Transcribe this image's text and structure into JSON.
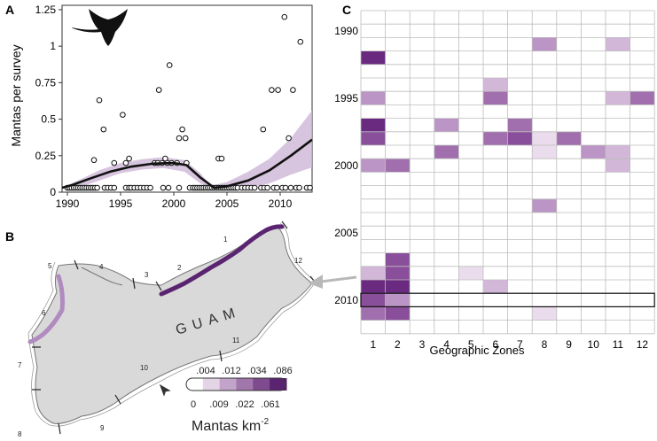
{
  "chart_data": [
    {
      "panel_label": "A",
      "type": "scatter",
      "ylabel": "Mantas per survey",
      "xlim": [
        1989.5,
        2013
      ],
      "ylim": [
        0,
        1.28
      ],
      "xticks": [
        1990,
        1995,
        2000,
        2005,
        2010
      ],
      "yticks": [
        0,
        0.25,
        0.5,
        0.75,
        1,
        1.25
      ],
      "ytick_labels": [
        "0",
        "0.25",
        "0.5",
        "0.75",
        "1",
        "1.25"
      ],
      "points": [
        [
          1990,
          0.03
        ],
        [
          1990.2,
          0.03
        ],
        [
          1990.4,
          0.03
        ],
        [
          1990.6,
          0.03
        ],
        [
          1990.8,
          0.03
        ],
        [
          1991,
          0.03
        ],
        [
          1991.2,
          0.03
        ],
        [
          1991.4,
          0.03
        ],
        [
          1991.6,
          0.03
        ],
        [
          1991.8,
          0.03
        ],
        [
          1992,
          0.03
        ],
        [
          1992.2,
          0.03
        ],
        [
          1992.4,
          0.03
        ],
        [
          1992.6,
          0.03
        ],
        [
          1992.8,
          0.03
        ],
        [
          1993.5,
          0.03
        ],
        [
          1993.8,
          0.03
        ],
        [
          1994.1,
          0.03
        ],
        [
          1994.4,
          0.03
        ],
        [
          1995.5,
          0.03
        ],
        [
          1995.8,
          0.03
        ],
        [
          1996,
          0.03
        ],
        [
          1996.3,
          0.03
        ],
        [
          1996.6,
          0.03
        ],
        [
          1996.9,
          0.03
        ],
        [
          1997.2,
          0.03
        ],
        [
          1997.5,
          0.03
        ],
        [
          1997.8,
          0.03
        ],
        [
          1999,
          0.03
        ],
        [
          1999.5,
          0.03
        ],
        [
          2000.5,
          0.03
        ],
        [
          2001.5,
          0.03
        ],
        [
          2001.8,
          0.03
        ],
        [
          2002,
          0.03
        ],
        [
          2002.2,
          0.03
        ],
        [
          2002.4,
          0.03
        ],
        [
          2002.6,
          0.03
        ],
        [
          2002.8,
          0.03
        ],
        [
          2003,
          0.03
        ],
        [
          2003.2,
          0.03
        ],
        [
          2003.4,
          0.03
        ],
        [
          2003.6,
          0.03
        ],
        [
          2003.8,
          0.03
        ],
        [
          2004,
          0.03
        ],
        [
          2004.2,
          0.03
        ],
        [
          2004.4,
          0.03
        ],
        [
          2004.6,
          0.03
        ],
        [
          2004.8,
          0.03
        ],
        [
          2005,
          0.03
        ],
        [
          2005.2,
          0.03
        ],
        [
          2005.4,
          0.03
        ],
        [
          2005.6,
          0.03
        ],
        [
          2005.8,
          0.03
        ],
        [
          2006,
          0.03
        ],
        [
          2006.4,
          0.03
        ],
        [
          2006.7,
          0.03
        ],
        [
          2007,
          0.03
        ],
        [
          2007.3,
          0.03
        ],
        [
          2007.6,
          0.03
        ],
        [
          2008.2,
          0.03
        ],
        [
          2008.5,
          0.03
        ],
        [
          2008.8,
          0.03
        ],
        [
          2009.4,
          0.03
        ],
        [
          2009.7,
          0.03
        ],
        [
          2010.2,
          0.03
        ],
        [
          2010.5,
          0.03
        ],
        [
          2011,
          0.03
        ],
        [
          2011.5,
          0.03
        ],
        [
          2011.8,
          0.03
        ],
        [
          2012.5,
          0.03
        ],
        [
          2012.8,
          0.03
        ],
        [
          1992.5,
          0.22
        ],
        [
          1993,
          0.63
        ],
        [
          1993.4,
          0.43
        ],
        [
          1994.4,
          0.2
        ],
        [
          1995.2,
          0.53
        ],
        [
          1995.5,
          0.2
        ],
        [
          1995.8,
          0.23
        ],
        [
          1998.2,
          0.2
        ],
        [
          1998.5,
          0.2
        ],
        [
          1998.6,
          0.7
        ],
        [
          1998.9,
          0.2
        ],
        [
          1999.2,
          0.23
        ],
        [
          1999.4,
          0.2
        ],
        [
          1999.6,
          0.87
        ],
        [
          1999.8,
          0.2
        ],
        [
          2000.3,
          0.2
        ],
        [
          2000.5,
          0.37
        ],
        [
          2000.8,
          0.43
        ],
        [
          2001.1,
          0.37
        ],
        [
          2001.2,
          0.2
        ],
        [
          2004.2,
          0.23
        ],
        [
          2004.5,
          0.23
        ],
        [
          2008.4,
          0.43
        ],
        [
          2009.2,
          0.7
        ],
        [
          2009.8,
          0.7
        ],
        [
          2010.4,
          1.2
        ],
        [
          2010.8,
          0.37
        ],
        [
          2011.2,
          0.7
        ],
        [
          2011.9,
          1.03
        ]
      ],
      "trend": [
        [
          1989.5,
          0.03
        ],
        [
          1990.5,
          0.05
        ],
        [
          1992,
          0.09
        ],
        [
          1994,
          0.14
        ],
        [
          1996,
          0.175
        ],
        [
          1998,
          0.195
        ],
        [
          2000,
          0.2
        ],
        [
          2001.2,
          0.185
        ],
        [
          2002.5,
          0.1
        ],
        [
          2003.8,
          0.03
        ],
        [
          2005,
          0.04
        ],
        [
          2007,
          0.08
        ],
        [
          2009,
          0.15
        ],
        [
          2011,
          0.25
        ],
        [
          2013,
          0.36
        ]
      ],
      "ci_upper": [
        [
          1989.5,
          0.03
        ],
        [
          1991,
          0.08
        ],
        [
          1993,
          0.15
        ],
        [
          1995,
          0.2
        ],
        [
          1997,
          0.225
        ],
        [
          1999,
          0.24
        ],
        [
          2001,
          0.22
        ],
        [
          2002.5,
          0.13
        ],
        [
          2003.5,
          0.045
        ],
        [
          2005,
          0.07
        ],
        [
          2007,
          0.14
        ],
        [
          2009,
          0.23
        ],
        [
          2011,
          0.37
        ],
        [
          2013,
          0.56
        ]
      ],
      "ci_lower": [
        [
          1989.5,
          0.03
        ],
        [
          1991,
          0.03
        ],
        [
          1993,
          0.08
        ],
        [
          1995,
          0.13
        ],
        [
          1997,
          0.155
        ],
        [
          1999,
          0.165
        ],
        [
          2001,
          0.14
        ],
        [
          2002.5,
          0.06
        ],
        [
          2003.5,
          0.025
        ],
        [
          2005,
          0.02
        ],
        [
          2007,
          0.03
        ],
        [
          2009,
          0.06
        ],
        [
          2011,
          0.12
        ],
        [
          2013,
          0.17
        ]
      ]
    },
    {
      "panel_label": "C",
      "type": "heatmap",
      "title": "",
      "xlabel": "Geographic Zones",
      "x_categories": [
        "1",
        "2",
        "3",
        "4",
        "5",
        "6",
        "7",
        "8",
        "9",
        "10",
        "11",
        "12"
      ],
      "year_start": 1989,
      "year_end": 2012,
      "year_labels": [
        "1990",
        "1995",
        "2000",
        "2005",
        "2010"
      ],
      "highlight_year": 2010,
      "cells": [
        {
          "year": 1991,
          "zone": 8,
          "level": 2
        },
        {
          "year": 1991,
          "zone": 11,
          "level": 1
        },
        {
          "year": 1992,
          "zone": 1,
          "level": 5
        },
        {
          "year": 1994,
          "zone": 6,
          "level": 1
        },
        {
          "year": 1995,
          "zone": 1,
          "level": 2
        },
        {
          "year": 1995,
          "zone": 6,
          "level": 3
        },
        {
          "year": 1995,
          "zone": 11,
          "level": 1
        },
        {
          "year": 1995,
          "zone": 12,
          "level": 3
        },
        {
          "year": 1997,
          "zone": 1,
          "level": 5
        },
        {
          "year": 1997,
          "zone": 4,
          "level": 2
        },
        {
          "year": 1997,
          "zone": 7,
          "level": 3
        },
        {
          "year": 1998,
          "zone": 1,
          "level": 4
        },
        {
          "year": 1998,
          "zone": 6,
          "level": 3
        },
        {
          "year": 1998,
          "zone": 7,
          "level": 4
        },
        {
          "year": 1998,
          "zone": 8,
          "level": 0.5
        },
        {
          "year": 1998,
          "zone": 9,
          "level": 3
        },
        {
          "year": 1999,
          "zone": 4,
          "level": 3
        },
        {
          "year": 1999,
          "zone": 8,
          "level": 0.5
        },
        {
          "year": 1999,
          "zone": 10,
          "level": 2
        },
        {
          "year": 1999,
          "zone": 11,
          "level": 1
        },
        {
          "year": 2000,
          "zone": 1,
          "level": 2
        },
        {
          "year": 2000,
          "zone": 2,
          "level": 3
        },
        {
          "year": 2000,
          "zone": 11,
          "level": 1
        },
        {
          "year": 2003,
          "zone": 8,
          "level": 2
        },
        {
          "year": 2007,
          "zone": 2,
          "level": 4
        },
        {
          "year": 2008,
          "zone": 1,
          "level": 1
        },
        {
          "year": 2008,
          "zone": 2,
          "level": 4
        },
        {
          "year": 2008,
          "zone": 5,
          "level": 0.5
        },
        {
          "year": 2009,
          "zone": 1,
          "level": 5
        },
        {
          "year": 2009,
          "zone": 2,
          "level": 5
        },
        {
          "year": 2009,
          "zone": 6,
          "level": 1
        },
        {
          "year": 2010,
          "zone": 1,
          "level": 4
        },
        {
          "year": 2010,
          "zone": 2,
          "level": 2
        },
        {
          "year": 2011,
          "zone": 1,
          "level": 3
        },
        {
          "year": 2011,
          "zone": 2,
          "level": 4
        },
        {
          "year": 2011,
          "zone": 8,
          "level": 0.5
        }
      ]
    }
  ],
  "panel_b": {
    "panel_label": "B",
    "island_name": "GUAM",
    "zone_labels": [
      "1",
      "2",
      "3",
      "4",
      "5",
      "6",
      "7",
      "8",
      "9",
      "10",
      "11",
      "12"
    ],
    "legend": {
      "top_labels": [
        ".004",
        ".012",
        ".034",
        ".086"
      ],
      "bottom_labels": [
        "0",
        ".009",
        ".022",
        ".061"
      ],
      "title": "Mantas km",
      "title_superscript": "-2",
      "colors": [
        "#ffffff",
        "#e3d4e6",
        "#c2a3c9",
        "#a076ab",
        "#7f4a8e",
        "#5a2470"
      ]
    },
    "colors": {
      "land": "#d9d9d9",
      "coast": "#888888",
      "high_density": "#5a2470",
      "low_density": "#b08bbf"
    }
  }
}
